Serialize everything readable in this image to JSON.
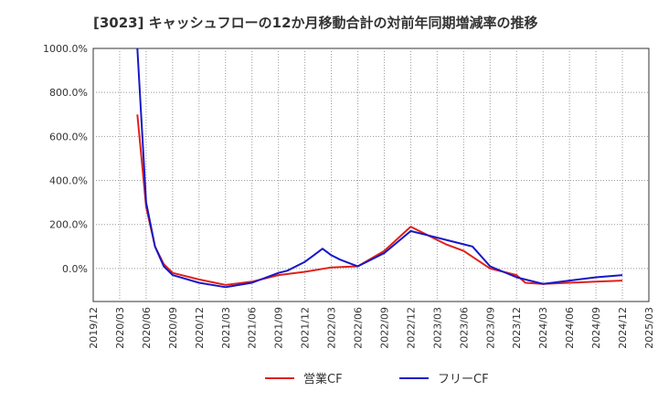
{
  "chart_data": {
    "type": "line",
    "title": "[3023]  キャッシュフローの12か月移動合計の対前年同期増減率の推移",
    "xlabel": "",
    "ylabel": "",
    "ylim": [
      -150,
      1000
    ],
    "y_ticks": [
      {
        "value": 1000,
        "label": "1000.0%"
      },
      {
        "value": 800,
        "label": "800.0%"
      },
      {
        "value": 600,
        "label": "600.0%"
      },
      {
        "value": 400,
        "label": "400.0%"
      },
      {
        "value": 200,
        "label": "200.0%"
      },
      {
        "value": 0,
        "label": "0.0%"
      }
    ],
    "x_tick_labels": [
      "2019/12",
      "2020/03",
      "2020/06",
      "2020/09",
      "2020/12",
      "2021/03",
      "2021/06",
      "2021/09",
      "2021/12",
      "2022/03",
      "2022/06",
      "2022/09",
      "2022/12",
      "2023/03",
      "2023/06",
      "2023/09",
      "2023/12",
      "2024/03",
      "2024/06",
      "2024/09",
      "2024/12",
      "2025/03"
    ],
    "x_start": "2019/12",
    "grid": true,
    "legend_position": "bottom",
    "colors": {
      "営業CF": "#e0201b",
      "フリーCF": "#1717c8"
    },
    "series": [
      {
        "name": "営業CF",
        "x": [
          5,
          6,
          7,
          8,
          9,
          12,
          15,
          18,
          21,
          24,
          27,
          30,
          33,
          36,
          39,
          40,
          42,
          45,
          48,
          49,
          51,
          54,
          57,
          60
        ],
        "values": [
          700,
          280,
          100,
          20,
          -20,
          -50,
          -75,
          -60,
          -30,
          -15,
          5,
          10,
          80,
          190,
          130,
          110,
          80,
          0,
          -30,
          -65,
          -70,
          -65,
          -60,
          -55
        ]
      },
      {
        "name": "フリーCF",
        "x": [
          5,
          6,
          7,
          8,
          9,
          12,
          15,
          18,
          21,
          22,
          24,
          25,
          26,
          27,
          28,
          30,
          33,
          36,
          38,
          39,
          42,
          43,
          45,
          48,
          51,
          54,
          57,
          60
        ],
        "values": [
          1000,
          300,
          100,
          10,
          -30,
          -65,
          -85,
          -65,
          -20,
          -10,
          30,
          60,
          90,
          60,
          40,
          10,
          70,
          170,
          150,
          140,
          110,
          100,
          10,
          -40,
          -70,
          -55,
          -40,
          -30
        ]
      }
    ]
  }
}
